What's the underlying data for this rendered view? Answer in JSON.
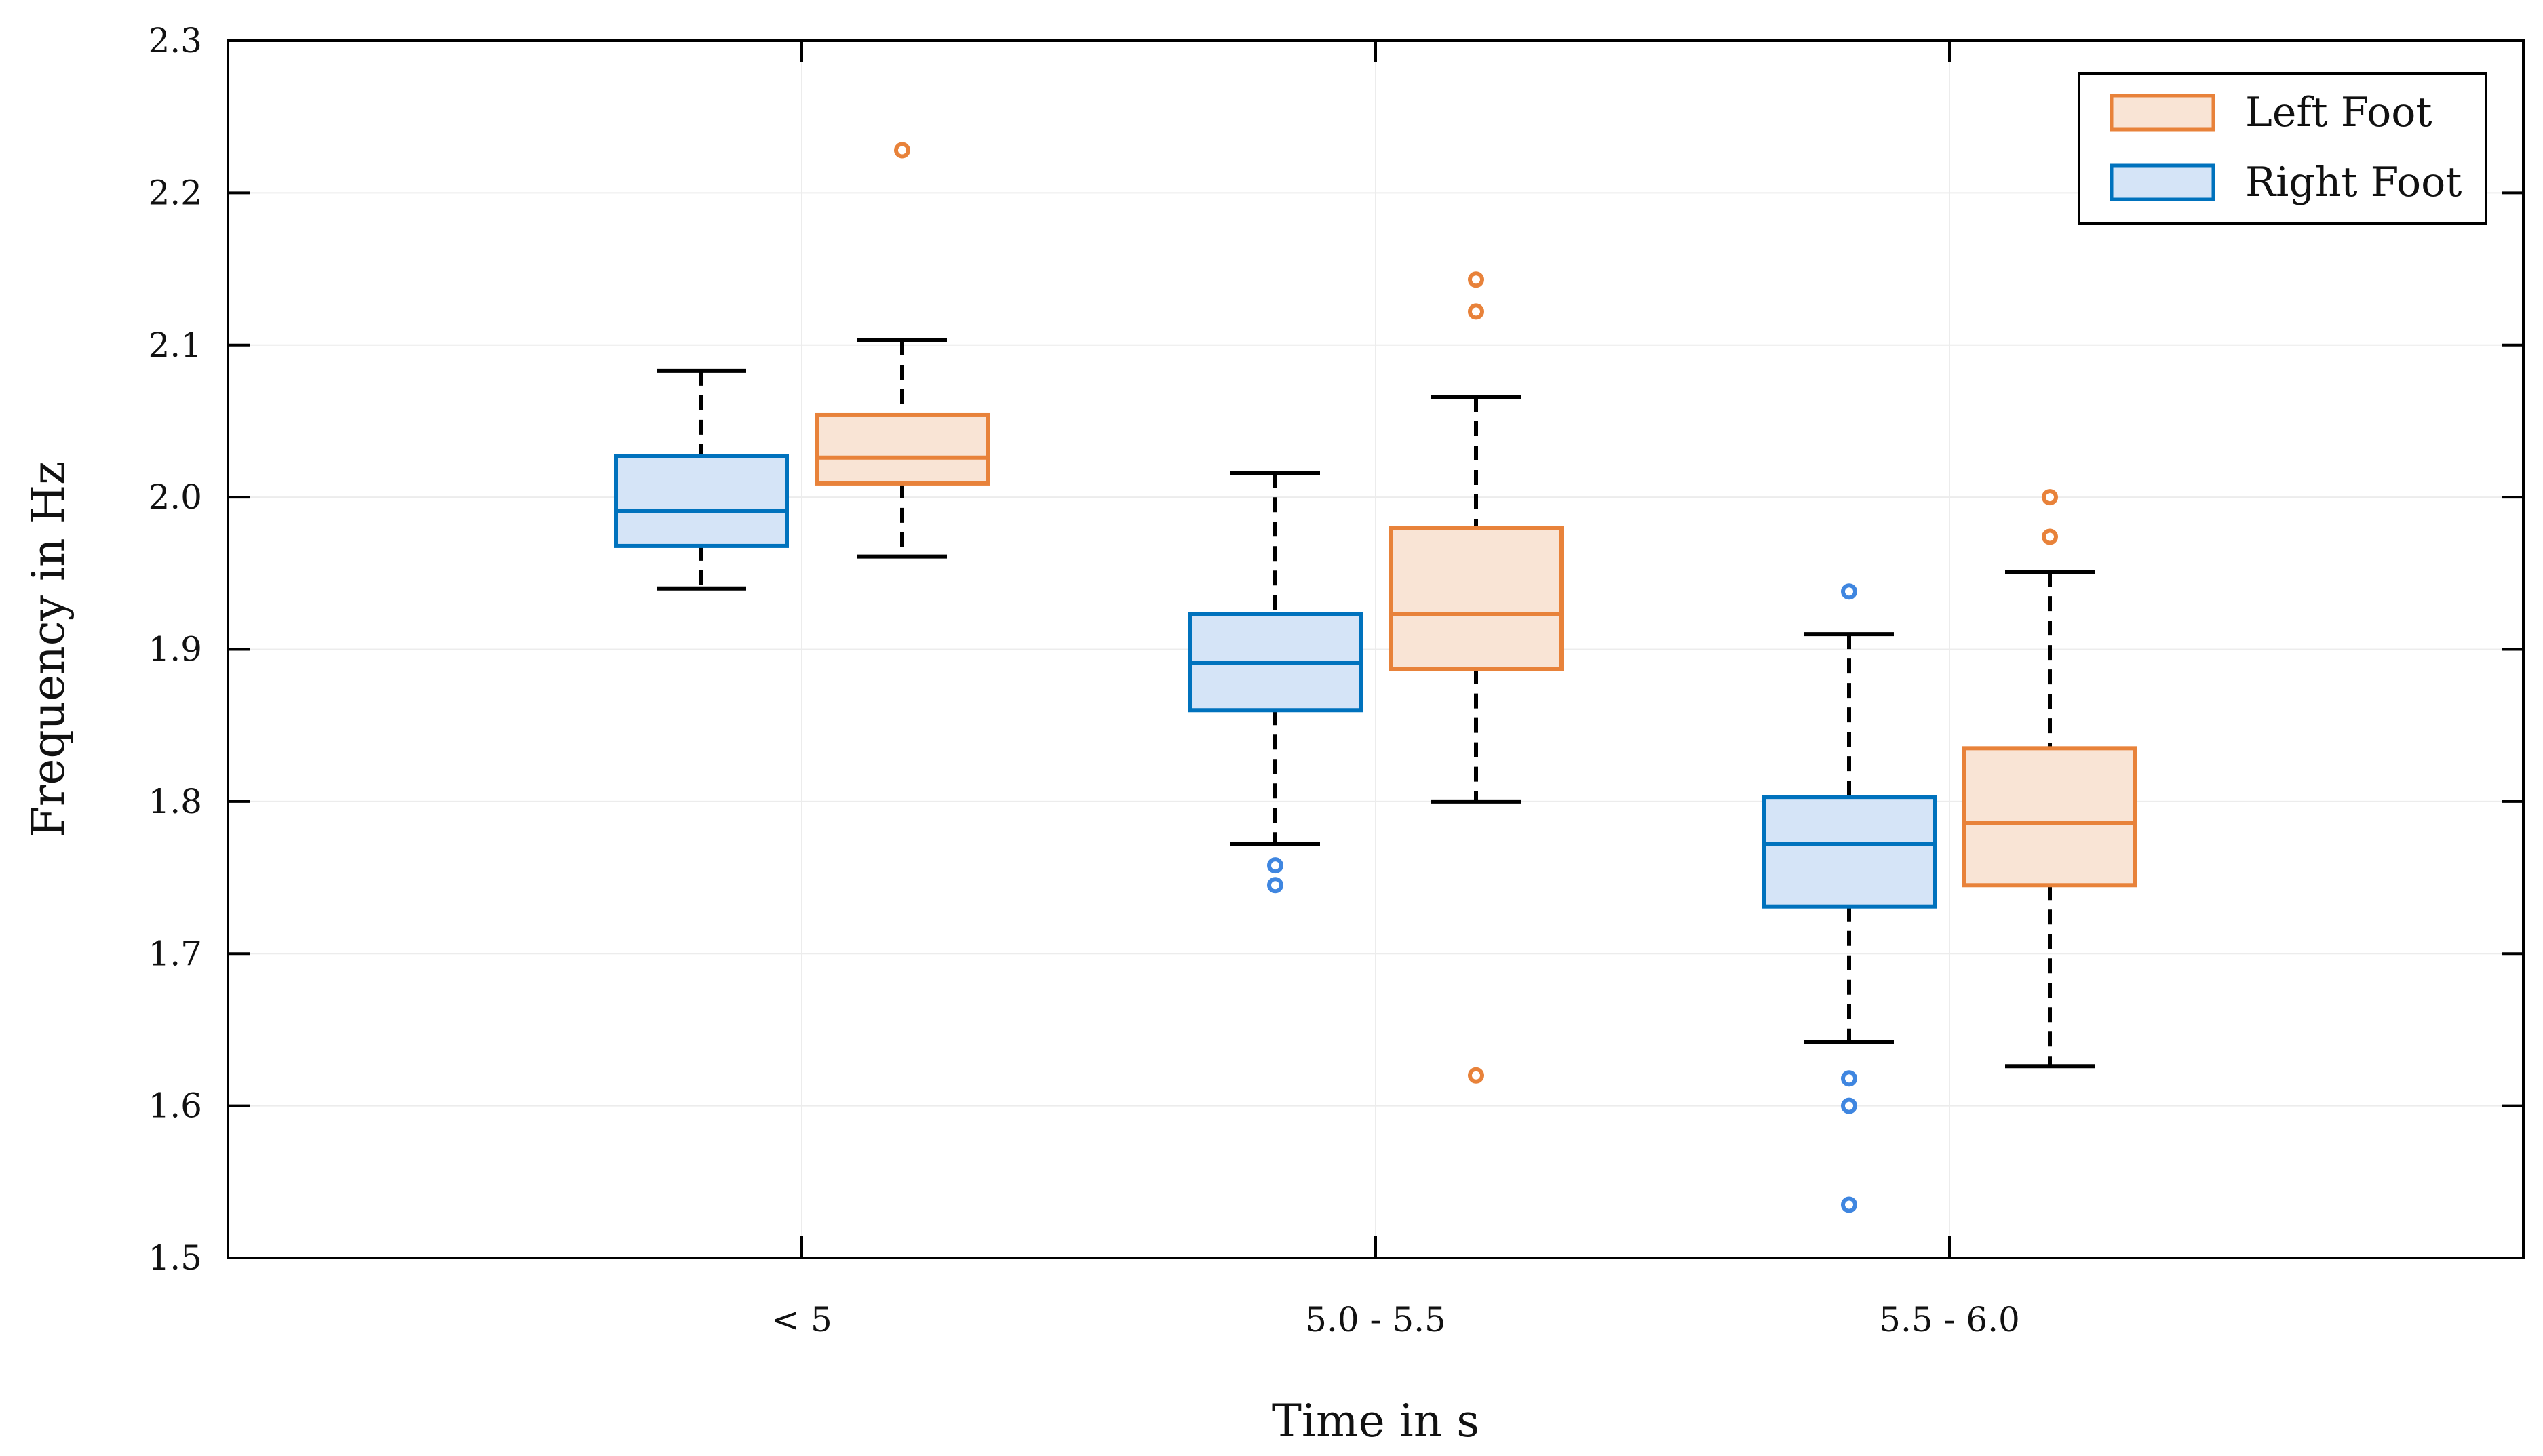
{
  "chart_data": {
    "type": "boxplot",
    "title": "",
    "xlabel": "Time in s",
    "ylabel": "Frequency in Hz",
    "ylim": [
      1.5,
      2.3
    ],
    "yticks": [
      "1.5",
      "1.6",
      "1.7",
      "1.8",
      "1.9",
      "2.0",
      "2.1",
      "2.2",
      "2.3"
    ],
    "categories": [
      "< 5",
      "5.0 - 5.5",
      "5.5 - 6.0"
    ],
    "grid": true,
    "legend_position": "top-right",
    "series": [
      {
        "name": "Right Foot",
        "color": "#0072bd",
        "fill": "#d5e4f7",
        "outlier_color": "#3f86e0",
        "boxes": [
          {
            "whisker_low": 1.94,
            "q1": 1.968,
            "median": 1.991,
            "q3": 2.027,
            "whisker_high": 2.083,
            "outliers": []
          },
          {
            "whisker_low": 1.772,
            "q1": 1.86,
            "median": 1.891,
            "q3": 1.923,
            "whisker_high": 2.016,
            "outliers": [
              1.745,
              1.758
            ]
          },
          {
            "whisker_low": 1.642,
            "q1": 1.731,
            "median": 1.772,
            "q3": 1.803,
            "whisker_high": 1.91,
            "outliers": [
              1.535,
              1.6,
              1.618,
              1.938
            ]
          }
        ]
      },
      {
        "name": "Left Foot",
        "color": "#e8823a",
        "fill": "#f9e4d5",
        "outlier_color": "#e8823a",
        "boxes": [
          {
            "whisker_low": 1.961,
            "q1": 2.009,
            "median": 2.026,
            "q3": 2.054,
            "whisker_high": 2.103,
            "outliers": [
              2.228
            ]
          },
          {
            "whisker_low": 1.8,
            "q1": 1.887,
            "median": 1.923,
            "q3": 1.98,
            "whisker_high": 2.066,
            "outliers": [
              1.62,
              2.122,
              2.143
            ]
          },
          {
            "whisker_low": 1.626,
            "q1": 1.745,
            "median": 1.786,
            "q3": 1.835,
            "whisker_high": 1.951,
            "outliers": [
              1.974,
              2.0
            ]
          }
        ]
      }
    ],
    "legend_order": [
      "Left Foot",
      "Right Foot"
    ]
  }
}
